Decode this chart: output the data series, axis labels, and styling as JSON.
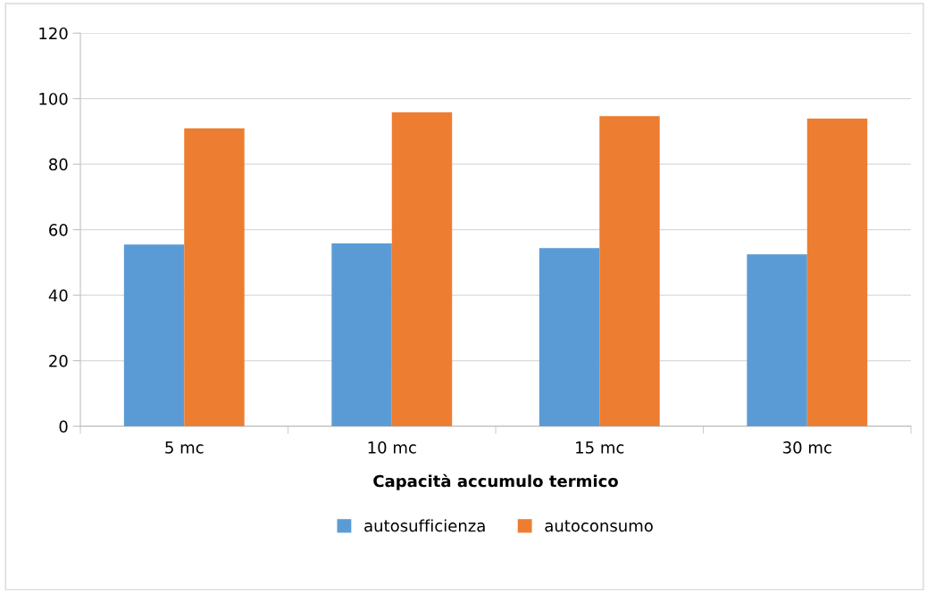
{
  "chart_data": {
    "type": "bar",
    "xlabel": "Capacità accumulo termico",
    "categories": [
      "5 mc",
      "10 mc",
      "15 mc",
      "30 mc"
    ],
    "series": [
      {
        "name": "autosufficienza",
        "color": "#5b9bd5",
        "values": [
          55.5,
          55.8,
          54.4,
          52.5
        ]
      },
      {
        "name": "autoconsumo",
        "color": "#ed7d31",
        "values": [
          90.9,
          95.8,
          94.7,
          93.9
        ]
      }
    ],
    "ylim": [
      0,
      120
    ],
    "yticks": [
      0,
      20,
      40,
      60,
      80,
      100,
      120
    ],
    "grid": "y",
    "legend": "bottom"
  }
}
